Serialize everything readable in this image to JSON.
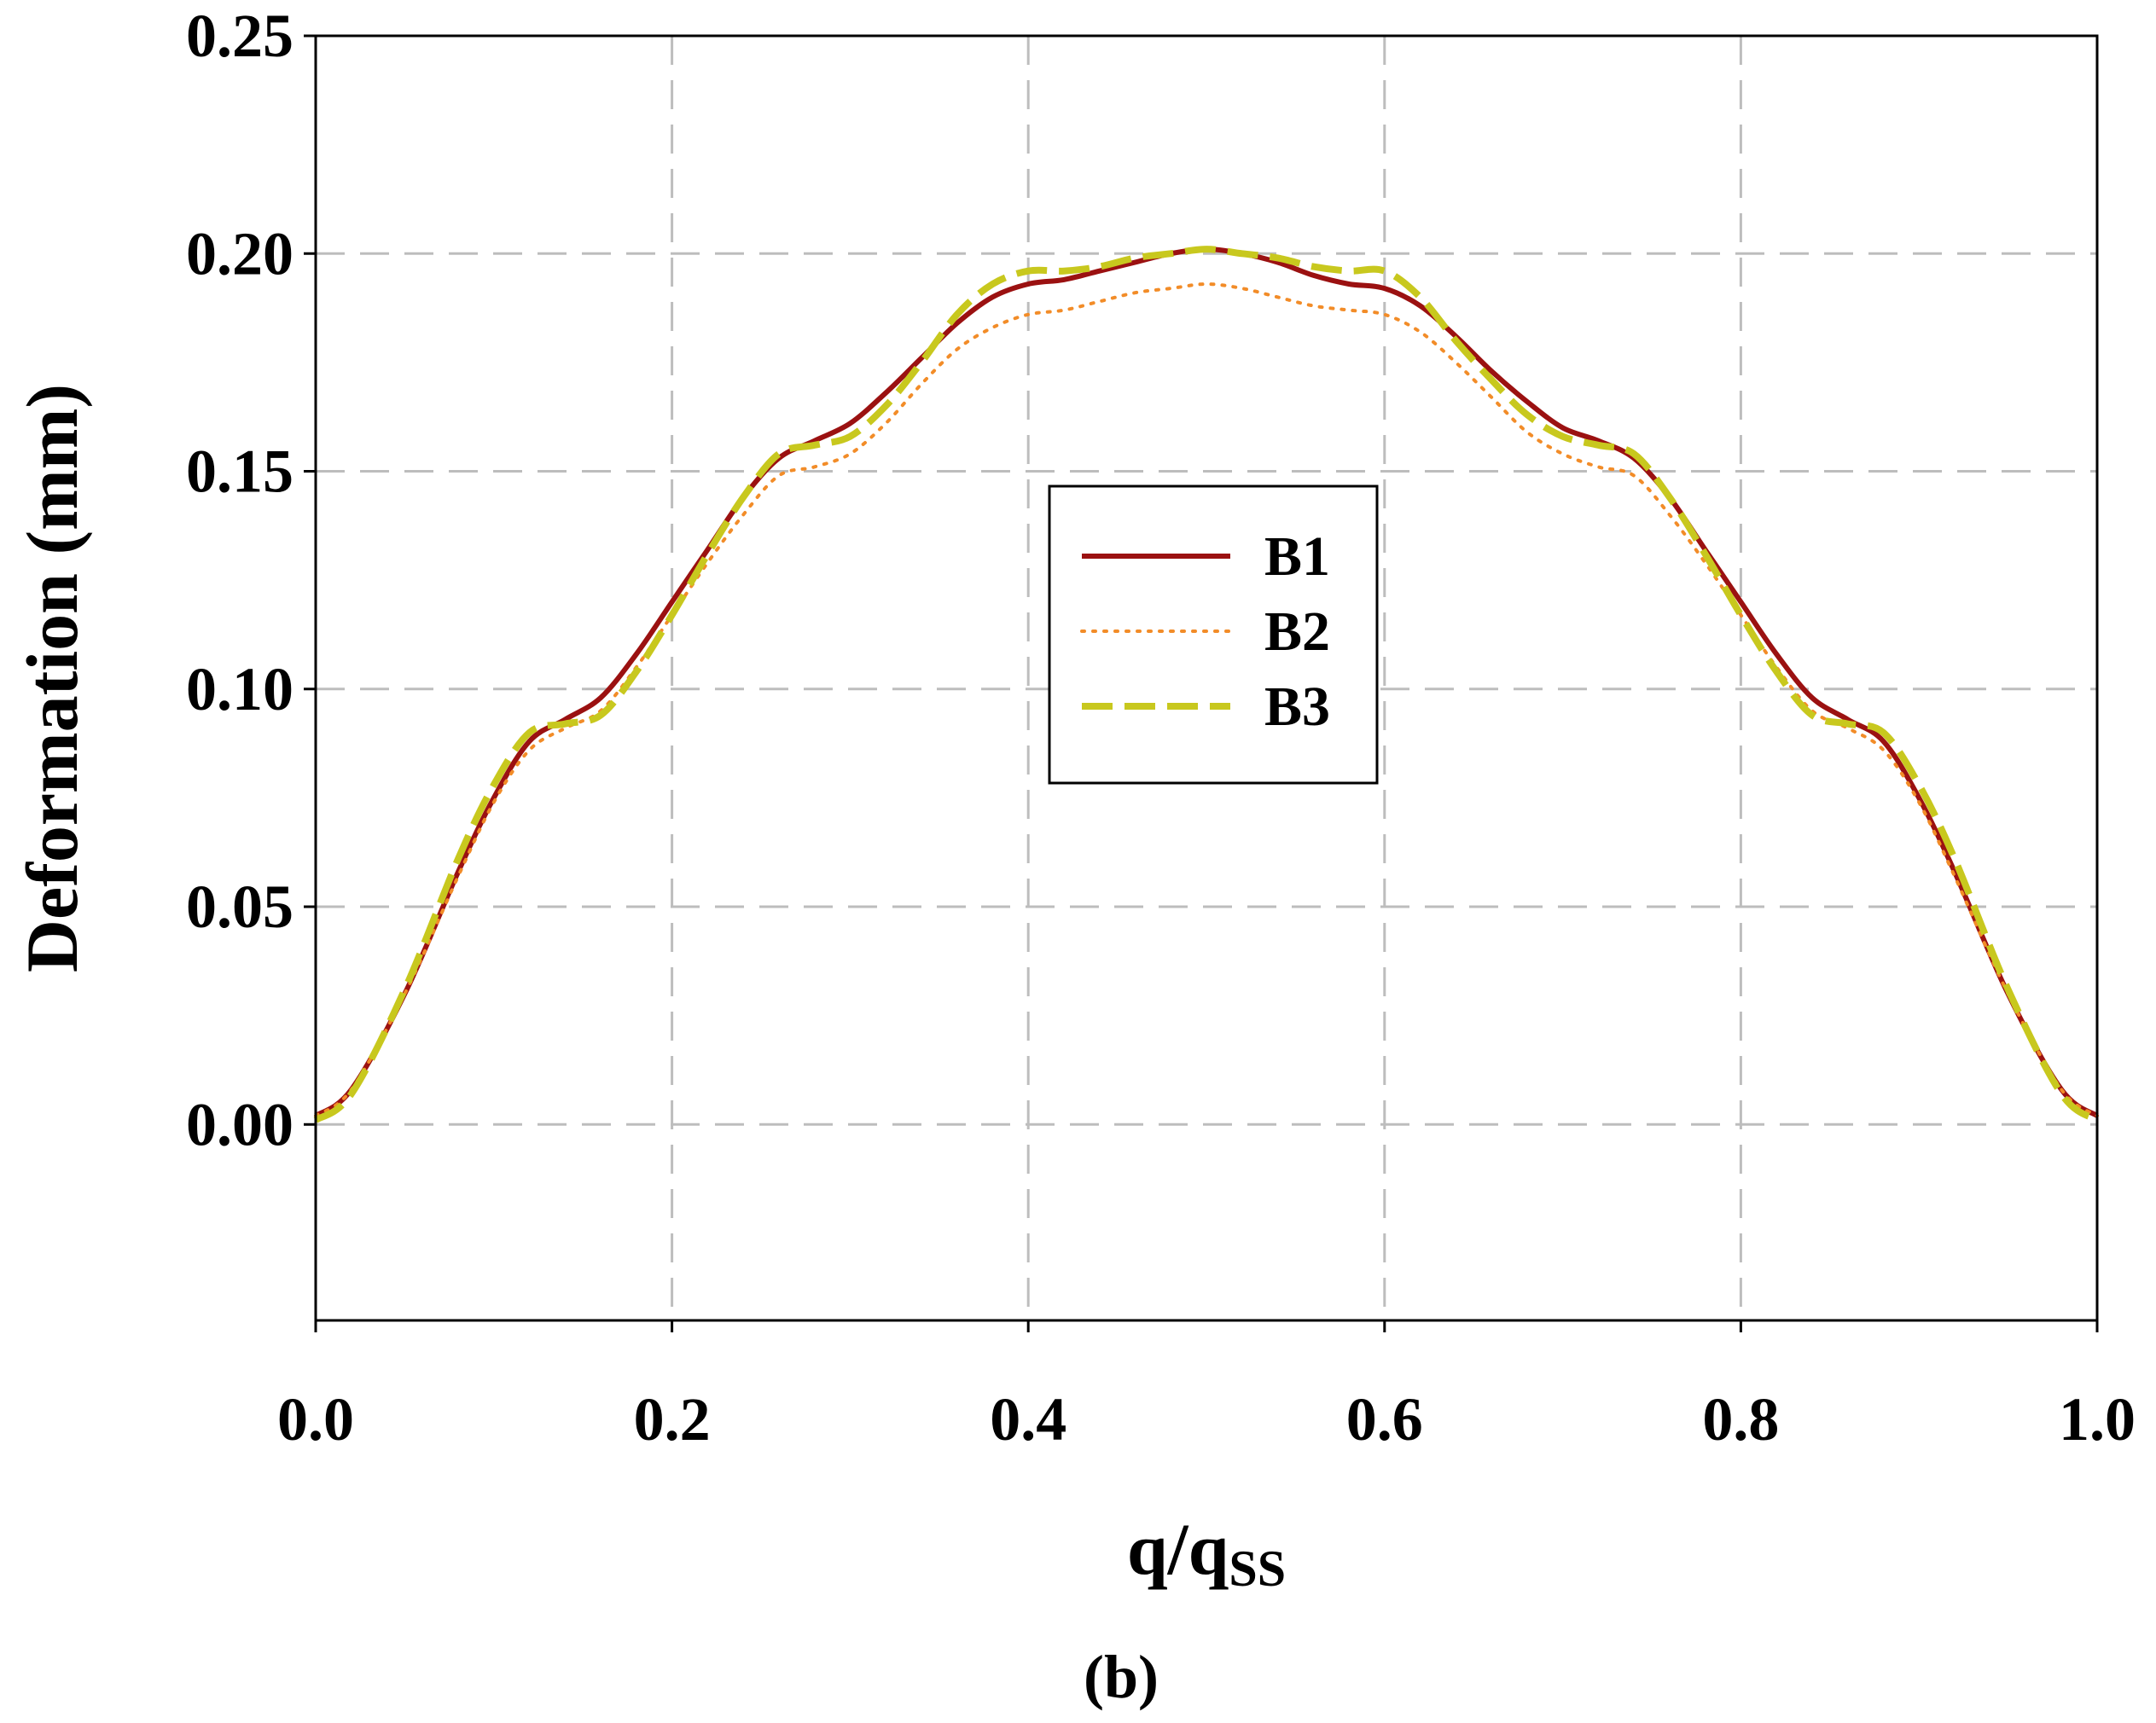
{
  "chart_data": {
    "type": "line",
    "title": "",
    "xlabel": "q/q",
    "xlabel_sub": "SS",
    "ylabel": "Deformation (mm)",
    "panel_label": "(b)",
    "xlim": [
      0.0,
      1.0
    ],
    "ylim": [
      -0.045,
      0.25
    ],
    "x_ticks": [
      "0.0",
      "0.2",
      "0.4",
      "0.6",
      "0.8",
      "1.0"
    ],
    "x_tick_values": [
      0.0,
      0.2,
      0.4,
      0.6,
      0.8,
      1.0
    ],
    "y_ticks": [
      "0.00",
      "0.05",
      "0.10",
      "0.15",
      "0.20",
      "0.25"
    ],
    "y_tick_values": [
      0.0,
      0.05,
      0.1,
      0.15,
      0.2,
      0.25
    ],
    "grid": true,
    "legend_position": "center",
    "series": [
      {
        "name": "B1",
        "color": "#9b1111",
        "style": "solid",
        "x": [
          0.0,
          0.02,
          0.05,
          0.08,
          0.1,
          0.12,
          0.14,
          0.16,
          0.18,
          0.2,
          0.22,
          0.24,
          0.26,
          0.28,
          0.3,
          0.32,
          0.34,
          0.36,
          0.38,
          0.4,
          0.42,
          0.44,
          0.46,
          0.48,
          0.5,
          0.52,
          0.54,
          0.56,
          0.58,
          0.6,
          0.62,
          0.64,
          0.66,
          0.68,
          0.7,
          0.72,
          0.74,
          0.76,
          0.78,
          0.8,
          0.82,
          0.84,
          0.86,
          0.88,
          0.9,
          0.92,
          0.95,
          0.98,
          1.0
        ],
        "y": [
          0.002,
          0.008,
          0.03,
          0.058,
          0.075,
          0.088,
          0.093,
          0.098,
          0.108,
          0.12,
          0.132,
          0.144,
          0.153,
          0.157,
          0.161,
          0.168,
          0.176,
          0.184,
          0.19,
          0.193,
          0.194,
          0.196,
          0.198,
          0.2,
          0.201,
          0.2,
          0.198,
          0.195,
          0.193,
          0.192,
          0.188,
          0.181,
          0.173,
          0.166,
          0.16,
          0.157,
          0.153,
          0.144,
          0.132,
          0.12,
          0.108,
          0.098,
          0.093,
          0.088,
          0.075,
          0.058,
          0.03,
          0.008,
          0.002
        ]
      },
      {
        "name": "B2",
        "color": "#f28c28",
        "style": "dotted",
        "x": [
          0.0,
          0.02,
          0.05,
          0.08,
          0.1,
          0.12,
          0.14,
          0.16,
          0.18,
          0.2,
          0.22,
          0.24,
          0.26,
          0.28,
          0.3,
          0.32,
          0.34,
          0.36,
          0.38,
          0.4,
          0.42,
          0.44,
          0.46,
          0.48,
          0.5,
          0.52,
          0.54,
          0.56,
          0.58,
          0.6,
          0.62,
          0.64,
          0.66,
          0.68,
          0.7,
          0.72,
          0.74,
          0.76,
          0.78,
          0.8,
          0.82,
          0.84,
          0.86,
          0.88,
          0.9,
          0.92,
          0.95,
          0.98,
          1.0
        ],
        "y": [
          0.002,
          0.008,
          0.03,
          0.057,
          0.074,
          0.086,
          0.091,
          0.095,
          0.105,
          0.117,
          0.129,
          0.14,
          0.149,
          0.151,
          0.154,
          0.161,
          0.17,
          0.178,
          0.183,
          0.186,
          0.187,
          0.189,
          0.191,
          0.192,
          0.193,
          0.192,
          0.19,
          0.188,
          0.187,
          0.186,
          0.182,
          0.175,
          0.167,
          0.159,
          0.154,
          0.151,
          0.149,
          0.14,
          0.129,
          0.117,
          0.105,
          0.095,
          0.091,
          0.086,
          0.074,
          0.057,
          0.03,
          0.008,
          0.002
        ]
      },
      {
        "name": "B3",
        "color": "#c8c81e",
        "style": "dashed",
        "x": [
          0.0,
          0.02,
          0.05,
          0.08,
          0.1,
          0.12,
          0.14,
          0.16,
          0.18,
          0.2,
          0.22,
          0.24,
          0.26,
          0.28,
          0.3,
          0.32,
          0.34,
          0.36,
          0.38,
          0.4,
          0.42,
          0.44,
          0.46,
          0.48,
          0.5,
          0.52,
          0.54,
          0.56,
          0.58,
          0.6,
          0.62,
          0.64,
          0.66,
          0.68,
          0.7,
          0.72,
          0.74,
          0.76,
          0.78,
          0.8,
          0.82,
          0.84,
          0.86,
          0.88,
          0.9,
          0.92,
          0.95,
          0.98,
          1.0
        ],
        "y": [
          0.001,
          0.007,
          0.031,
          0.061,
          0.078,
          0.09,
          0.092,
          0.094,
          0.104,
          0.117,
          0.131,
          0.144,
          0.154,
          0.156,
          0.158,
          0.165,
          0.175,
          0.186,
          0.193,
          0.196,
          0.196,
          0.197,
          0.199,
          0.2,
          0.201,
          0.2,
          0.199,
          0.197,
          0.196,
          0.196,
          0.19,
          0.18,
          0.171,
          0.163,
          0.158,
          0.156,
          0.154,
          0.144,
          0.131,
          0.117,
          0.104,
          0.094,
          0.092,
          0.09,
          0.078,
          0.061,
          0.031,
          0.007,
          0.001
        ]
      }
    ]
  }
}
